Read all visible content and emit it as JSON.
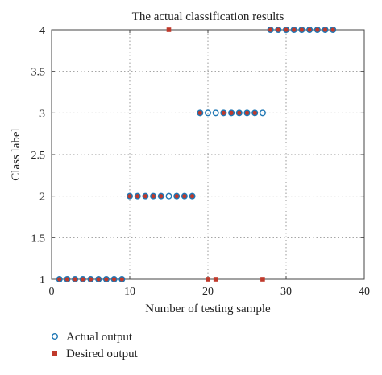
{
  "chart_data": {
    "type": "scatter",
    "title": "The actual classification results",
    "xlabel": "Number of testing sample",
    "ylabel": "Class label",
    "xlim": [
      0,
      40
    ],
    "ylim": [
      1,
      4
    ],
    "xticks": [
      0,
      10,
      20,
      30,
      40
    ],
    "yticks": [
      1,
      1.5,
      2,
      2.5,
      3,
      3.5,
      4
    ],
    "xtick_labels": [
      "0",
      "10",
      "20",
      "30",
      "40"
    ],
    "ytick_labels": [
      "1",
      "1.5",
      "2",
      "2.5",
      "3",
      "3.5",
      "4"
    ],
    "grid": true,
    "legend_position": "below-left",
    "series": [
      {
        "name": "Actual output",
        "marker": "open-circle",
        "color": "#1f77b4",
        "x": [
          1,
          2,
          3,
          4,
          5,
          6,
          7,
          8,
          9,
          10,
          11,
          12,
          13,
          14,
          15,
          16,
          17,
          18,
          19,
          20,
          21,
          22,
          23,
          24,
          25,
          26,
          27,
          28,
          29,
          30,
          31,
          32,
          33,
          34,
          35,
          36
        ],
        "y": [
          1,
          1,
          1,
          1,
          1,
          1,
          1,
          1,
          1,
          2,
          2,
          2,
          2,
          2,
          2,
          2,
          2,
          2,
          3,
          3,
          3,
          3,
          3,
          3,
          3,
          3,
          3,
          4,
          4,
          4,
          4,
          4,
          4,
          4,
          4,
          4
        ]
      },
      {
        "name": "Desired output",
        "marker": "filled-square",
        "color": "#c0392b",
        "x": [
          1,
          2,
          3,
          4,
          5,
          6,
          7,
          8,
          9,
          10,
          11,
          12,
          13,
          14,
          15,
          16,
          17,
          18,
          19,
          20,
          21,
          22,
          23,
          24,
          25,
          26,
          27,
          28,
          29,
          30,
          31,
          32,
          33,
          34,
          35,
          36
        ],
        "y": [
          1,
          1,
          1,
          1,
          1,
          1,
          1,
          1,
          1,
          2,
          2,
          2,
          2,
          2,
          4,
          2,
          2,
          2,
          3,
          1,
          1,
          3,
          3,
          3,
          3,
          3,
          1,
          4,
          4,
          4,
          4,
          4,
          4,
          4,
          4,
          4
        ]
      }
    ]
  }
}
